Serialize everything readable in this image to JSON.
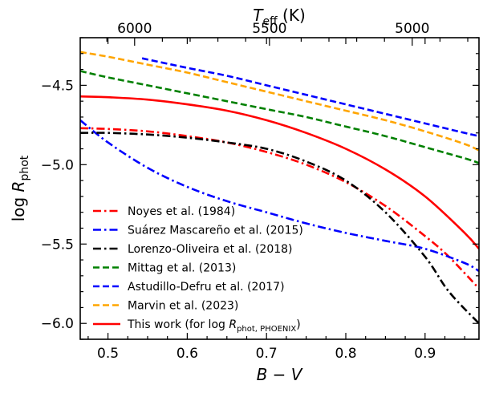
{
  "chart_data": {
    "type": "line",
    "title": "",
    "xlabel": "B − V",
    "ylabel": "log R_phot",
    "ylabel_main": "log ",
    "ylabel_R": "R",
    "ylabel_sub": "phot",
    "top_xlabel_T": "T",
    "top_xlabel_sub": "eff",
    "top_xlabel_unit": " (K)",
    "xlim": [
      0.465,
      0.968
    ],
    "ylim": [
      -6.1,
      -4.2
    ],
    "xticks": [
      0.5,
      0.6,
      0.7,
      0.8,
      0.9
    ],
    "xtick_labels": [
      "0.5",
      "0.6",
      "0.7",
      "0.8",
      "0.9"
    ],
    "yticks": [
      -4.5,
      -5.0,
      -5.5,
      -6.0
    ],
    "ytick_labels": [
      "−4.5",
      "−5.0",
      "−5.5",
      "−6.0"
    ],
    "top_ticks": [
      {
        "bv": 0.5336,
        "label": "6000"
      },
      {
        "bv": 0.7037,
        "label": "5500"
      },
      {
        "bv": 0.8838,
        "label": "5000"
      }
    ],
    "legend_position": "lower-left",
    "series": [
      {
        "name": "Noyes et al. (1984)",
        "color": "#ff0000",
        "dash": "dashdot",
        "x": [
          0.465,
          0.5,
          0.55,
          0.6,
          0.65,
          0.7,
          0.75,
          0.8,
          0.85,
          0.9,
          0.93,
          0.968
        ],
        "y": [
          -4.77,
          -4.775,
          -4.79,
          -4.82,
          -4.86,
          -4.92,
          -5.0,
          -5.11,
          -5.26,
          -5.45,
          -5.58,
          -5.78
        ]
      },
      {
        "name": "Suárez Mascareño et al. (2015)",
        "color": "#0000ff",
        "dash": "dashdot",
        "x": [
          0.465,
          0.5,
          0.55,
          0.6,
          0.65,
          0.7,
          0.75,
          0.8,
          0.85,
          0.9,
          0.95,
          0.968
        ],
        "y": [
          -4.72,
          -4.86,
          -5.02,
          -5.14,
          -5.23,
          -5.3,
          -5.37,
          -5.43,
          -5.48,
          -5.53,
          -5.62,
          -5.67
        ]
      },
      {
        "name": "Lorenzo-Oliveira et al. (2018)",
        "color": "#000000",
        "dash": "dashdot",
        "x": [
          0.465,
          0.5,
          0.55,
          0.6,
          0.65,
          0.7,
          0.75,
          0.8,
          0.85,
          0.9,
          0.93,
          0.968
        ],
        "y": [
          -4.8,
          -4.8,
          -4.81,
          -4.83,
          -4.86,
          -4.9,
          -4.98,
          -5.1,
          -5.3,
          -5.58,
          -5.8,
          -6.0
        ]
      },
      {
        "name": "Mittag et al. (2013)",
        "color": "#008000",
        "dash": "dash",
        "x": [
          0.465,
          0.5,
          0.55,
          0.6,
          0.65,
          0.7,
          0.75,
          0.8,
          0.85,
          0.9,
          0.95,
          0.968
        ],
        "y": [
          -4.41,
          -4.45,
          -4.5,
          -4.55,
          -4.6,
          -4.65,
          -4.7,
          -4.76,
          -4.82,
          -4.89,
          -4.96,
          -4.99
        ]
      },
      {
        "name": "Astudillo-Defru et al. (2017)",
        "color": "#0000ff",
        "dash": "dash",
        "x": [
          0.543,
          0.6,
          0.65,
          0.7,
          0.75,
          0.8,
          0.85,
          0.9,
          0.95,
          0.968
        ],
        "y": [
          -4.33,
          -4.39,
          -4.44,
          -4.5,
          -4.56,
          -4.62,
          -4.68,
          -4.74,
          -4.8,
          -4.82
        ]
      },
      {
        "name": "Marvin et al. (2023)",
        "color": "#ffa500",
        "dash": "dash",
        "x": [
          0.465,
          0.5,
          0.55,
          0.6,
          0.65,
          0.7,
          0.75,
          0.8,
          0.85,
          0.9,
          0.95,
          0.968
        ],
        "y": [
          -4.29,
          -4.32,
          -4.37,
          -4.42,
          -4.48,
          -4.54,
          -4.6,
          -4.66,
          -4.72,
          -4.79,
          -4.87,
          -4.91
        ]
      },
      {
        "name": "This work (for log R_phot, PHOENIX)",
        "color": "#ff0000",
        "dash": "solid",
        "legend_prefix": "This work (for log ",
        "legend_R": "R",
        "legend_sub": "phot, PHOENIX",
        "legend_suffix": ")",
        "x": [
          0.465,
          0.5,
          0.55,
          0.6,
          0.65,
          0.7,
          0.75,
          0.8,
          0.85,
          0.9,
          0.95,
          0.968
        ],
        "y": [
          -4.57,
          -4.575,
          -4.59,
          -4.62,
          -4.66,
          -4.72,
          -4.8,
          -4.9,
          -5.03,
          -5.2,
          -5.43,
          -5.53
        ]
      }
    ]
  }
}
